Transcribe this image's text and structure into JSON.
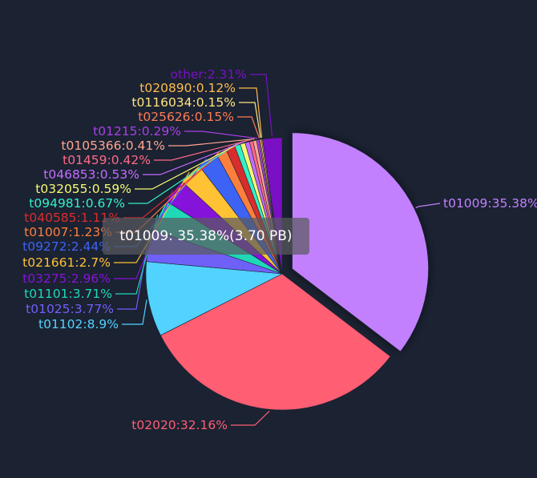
{
  "chart_data": {
    "type": "pie",
    "title": "",
    "slices": [
      {
        "label": "t01009:35.38%",
        "name": "t01009",
        "value": 35.38,
        "color": "#c280ff",
        "exploded": true
      },
      {
        "label": "t02020:32.16%",
        "name": "t02020",
        "value": 32.16,
        "color": "#ff5e73"
      },
      {
        "label": "t01102:8.9%",
        "name": "t01102",
        "value": 8.9,
        "color": "#52d2fe"
      },
      {
        "label": "t01025:3.77%",
        "name": "t01025",
        "value": 3.77,
        "color": "#6f60f8"
      },
      {
        "label": "t01101:3.71%",
        "name": "t01101",
        "value": 3.71,
        "color": "#1ed8b8"
      },
      {
        "label": "t03275:2.96%",
        "name": "t03275",
        "value": 2.96,
        "color": "#8513d9"
      },
      {
        "label": "t021661:2.7%",
        "name": "t021661",
        "value": 2.7,
        "color": "#ffc234"
      },
      {
        "label": "t09272:2.44%",
        "name": "t09272",
        "value": 2.44,
        "color": "#3d63f5"
      },
      {
        "label": "t01007:1.23%",
        "name": "t01007",
        "value": 1.23,
        "color": "#fd7f3d"
      },
      {
        "label": "t040585:1.11%",
        "name": "t040585",
        "value": 1.11,
        "color": "#d82d2d"
      },
      {
        "label": "t094981:0.67%",
        "name": "t094981",
        "value": 0.67,
        "color": "#33f0c8"
      },
      {
        "label": "t032055:0.59%",
        "name": "t032055",
        "value": 0.59,
        "color": "#f5fa73"
      },
      {
        "label": "t046853:0.53%",
        "name": "t046853",
        "value": 0.53,
        "color": "#c46cff"
      },
      {
        "label": "t01459:0.42%",
        "name": "t01459",
        "value": 0.42,
        "color": "#ff6a86"
      },
      {
        "label": "t0105366:0.41%",
        "name": "t0105366",
        "value": 0.41,
        "color": "#ffa58f"
      },
      {
        "label": "t01215:0.29%",
        "name": "t01215",
        "value": 0.29,
        "color": "#a93fe8"
      },
      {
        "label": "t025626:0.15%",
        "name": "t025626",
        "value": 0.15,
        "color": "#fc7c55"
      },
      {
        "label": "t0116034:0.15%",
        "name": "t0116034",
        "value": 0.15,
        "color": "#ffe57f"
      },
      {
        "label": "t020890:0.12%",
        "name": "t020890",
        "value": 0.12,
        "color": "#ffbd4a"
      },
      {
        "label": "other:2.31%",
        "name": "other",
        "value": 2.31,
        "color": "#7a0fc4"
      }
    ],
    "tooltip": "t01009: 35.38%(3.70 PB)",
    "legend": "none"
  }
}
